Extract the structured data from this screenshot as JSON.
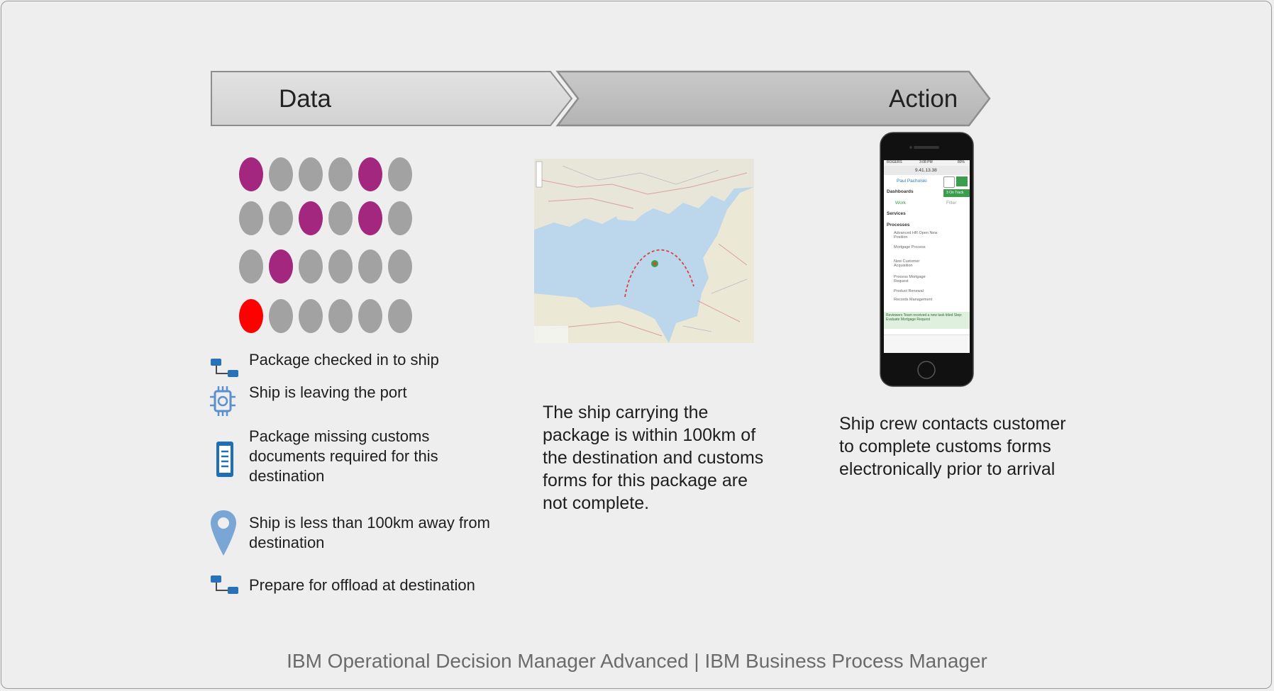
{
  "stages": {
    "data_label": "Data",
    "action_label": "Action"
  },
  "dot_grid": {
    "rows": [
      [
        "purple",
        "gray",
        "gray",
        "gray",
        "purple",
        "gray"
      ],
      [
        "gray",
        "gray",
        "purple",
        "gray",
        "purple",
        "gray"
      ],
      [
        "gray",
        "purple",
        "gray",
        "gray",
        "gray",
        "gray"
      ],
      [
        "red",
        "gray",
        "gray",
        "gray",
        "gray",
        "gray"
      ]
    ],
    "colors": {
      "purple": "#a3267f",
      "gray": "#a2a2a2",
      "red": "#ff0000"
    }
  },
  "events": [
    {
      "icon": "process-flow-icon",
      "text": "Package checked in to ship"
    },
    {
      "icon": "chip-icon",
      "text": "Ship is leaving the port"
    },
    {
      "icon": "document-icon",
      "text": "Package missing customs documents required for this destination"
    },
    {
      "icon": "location-pin-icon",
      "text": "Ship is less than 100km away from destination"
    },
    {
      "icon": "process-flow-icon",
      "text": "Prepare for offload at destination"
    }
  ],
  "middle": {
    "description": "The ship carrying the package is within 100km of the destination and customs forms for this package are not complete."
  },
  "phone_screen": {
    "status_left": "ROGERS",
    "status_time": "3:08 PM",
    "status_right": "80%",
    "url": "9.41.13.38",
    "user": "Paul Pacholski",
    "dashboards": "Dashboards",
    "work": "Work",
    "badge": "3 On Track",
    "filter": "Filter",
    "services": "Services",
    "processes": "Processes",
    "items": [
      "Advanced HR Open New Position",
      "Mortgage Process",
      "New Customer Acquisition",
      "Process Mortgage Request",
      "Product Renewal",
      "Records Management"
    ],
    "notification": "Reviewers Team received a new task titled Step: Evaluate Mortgage Request"
  },
  "right": {
    "description": "Ship crew contacts customer to complete customs forms electronically prior to arrival"
  },
  "footer": "IBM Operational Decision Manager Advanced | IBM Business Process Manager"
}
